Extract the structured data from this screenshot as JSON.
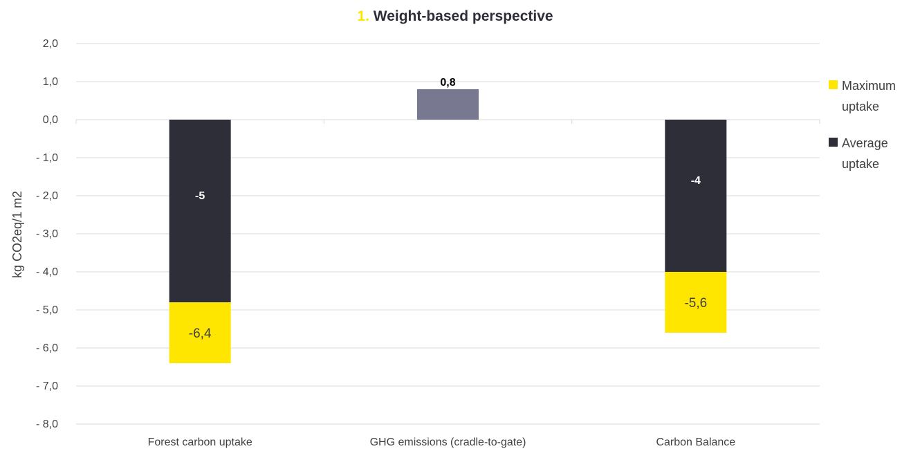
{
  "chart_data": {
    "type": "bar",
    "title_number": "1.",
    "title": "Weight-based perspective",
    "ylabel": "kg CO2eq/1 m2",
    "xlabel": "",
    "ylim": [
      -8,
      2
    ],
    "yticks": [
      2,
      1,
      0,
      -1,
      -2,
      -3,
      -4,
      -5,
      -6,
      -7,
      -8
    ],
    "ytick_labels": [
      "2,0",
      "1,0",
      "0,0",
      "- 1,0",
      "- 2,0",
      "- 3,0",
      "- 4,0",
      "- 5,0",
      "- 6,0",
      "- 7,0",
      "- 8,0"
    ],
    "categories": [
      "Forest carbon uptake",
      "GHG emissions (cradle-to-gate)",
      "Carbon Balance"
    ],
    "bars": [
      {
        "category": "Forest carbon uptake",
        "kind": "average",
        "value": -4.8,
        "label": "-5"
      },
      {
        "category": "Forest carbon uptake",
        "kind": "maximum",
        "from": -4.8,
        "to": -6.4,
        "label": "-6,4"
      },
      {
        "category": "GHG emissions (cradle-to-gate)",
        "kind": "emission",
        "value": 0.8,
        "label": "0,8"
      },
      {
        "category": "Carbon Balance",
        "kind": "average",
        "value": -4.0,
        "label": "-4"
      },
      {
        "category": "Carbon Balance",
        "kind": "maximum",
        "from": -4.0,
        "to": -5.6,
        "label": "-5,6"
      }
    ],
    "legend": [
      {
        "name_lines": [
          "Maximum",
          "uptake"
        ],
        "color": "#FFE600"
      },
      {
        "name_lines": [
          "Average",
          "uptake"
        ],
        "color": "#2E2E38"
      }
    ],
    "legend_position": "right",
    "grid": true,
    "colors": {
      "maximum": "#FFE600",
      "average": "#2E2E38",
      "emission": "#787890",
      "grid": "#D9D9D9",
      "text": "#404040"
    }
  }
}
